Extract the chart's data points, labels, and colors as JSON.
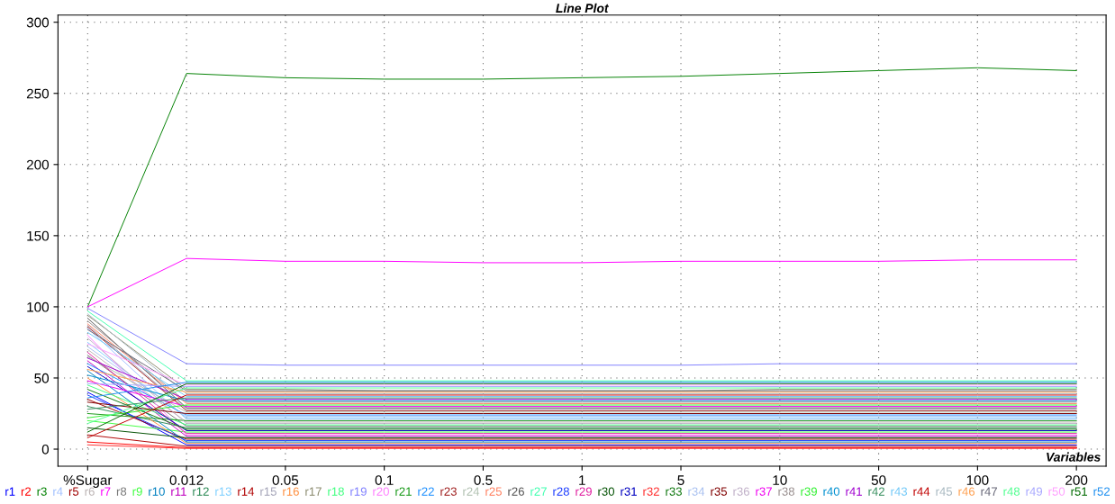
{
  "chart_data": {
    "type": "line",
    "title": "Line Plot",
    "xlabel": "Variables",
    "categories": [
      "%Sugar",
      "0.012",
      "0.05",
      "0.1",
      "0.5",
      "1",
      "5",
      "10",
      "50",
      "100",
      "200"
    ],
    "ylim": [
      -12,
      305
    ],
    "yticks": [
      0,
      50,
      100,
      150,
      200,
      250,
      300
    ],
    "grid": true,
    "legend": "bottom",
    "marker": "none",
    "line_style": "solid",
    "series": [
      {
        "name": "r1",
        "color": "#0000ff",
        "values": [
          40,
          3,
          3,
          3,
          3,
          3,
          3,
          3,
          3,
          3,
          3
        ]
      },
      {
        "name": "r2",
        "color": "#ff0000",
        "values": [
          5,
          1,
          1,
          1,
          1,
          1,
          1,
          1,
          1,
          1,
          1
        ]
      },
      {
        "name": "r3",
        "color": "#008000",
        "values": [
          100,
          264,
          261,
          260,
          260,
          261,
          262,
          264,
          266,
          268,
          266
        ]
      },
      {
        "name": "r4",
        "color": "#a0c0ff",
        "values": [
          85,
          21,
          21,
          21,
          21,
          21,
          21,
          21,
          21,
          21,
          21
        ]
      },
      {
        "name": "r5",
        "color": "#a00000",
        "values": [
          35,
          7,
          7,
          7,
          7,
          7,
          7,
          7,
          7,
          7,
          7
        ]
      },
      {
        "name": "r6",
        "color": "#bcb4b4",
        "values": [
          70,
          19,
          19,
          19,
          19,
          19,
          19,
          19,
          19,
          19,
          19
        ]
      },
      {
        "name": "r7",
        "color": "#ff00ff",
        "values": [
          100,
          134,
          132,
          132,
          131,
          131,
          132,
          132,
          132,
          133,
          133
        ]
      },
      {
        "name": "r8",
        "color": "#7a7a7a",
        "values": [
          66,
          16,
          16,
          16,
          16,
          16,
          16,
          16,
          16,
          16,
          16
        ]
      },
      {
        "name": "r9",
        "color": "#40ff40",
        "values": [
          20,
          12,
          12,
          12,
          12,
          12,
          12,
          12,
          12,
          12,
          12
        ]
      },
      {
        "name": "r10",
        "color": "#0080c0",
        "values": [
          55,
          5,
          5,
          5,
          5,
          5,
          5,
          5,
          5,
          5,
          5
        ]
      },
      {
        "name": "r11",
        "color": "#c000c0",
        "values": [
          62,
          9,
          9,
          9,
          9,
          9,
          9,
          9,
          9,
          9,
          9
        ]
      },
      {
        "name": "r12",
        "color": "#2e8b57",
        "values": [
          30,
          15,
          15,
          15,
          15,
          15,
          15,
          15,
          15,
          15,
          15
        ]
      },
      {
        "name": "r13",
        "color": "#80d0ff",
        "values": [
          75,
          22,
          22,
          22,
          22,
          22,
          22,
          22,
          22,
          22,
          22
        ]
      },
      {
        "name": "r14",
        "color": "#b00000",
        "values": [
          10,
          2,
          2,
          2,
          2,
          2,
          2,
          2,
          2,
          2,
          2
        ]
      },
      {
        "name": "r15",
        "color": "#a4a4b8",
        "values": [
          87,
          28,
          28,
          28,
          28,
          28,
          28,
          28,
          28,
          28,
          28
        ]
      },
      {
        "name": "r16",
        "color": "#ff9040",
        "values": [
          50,
          4,
          4,
          4,
          4,
          4,
          4,
          4,
          4,
          4,
          4
        ]
      },
      {
        "name": "r17",
        "color": "#8c8c70",
        "values": [
          94,
          42,
          42,
          41,
          41,
          41,
          41,
          42,
          42,
          42,
          42
        ]
      },
      {
        "name": "r18",
        "color": "#40ff80",
        "values": [
          45,
          17,
          17,
          17,
          17,
          17,
          17,
          17,
          17,
          17,
          17
        ]
      },
      {
        "name": "r19",
        "color": "#8080ff",
        "values": [
          99,
          60,
          59,
          59,
          59,
          59,
          59,
          60,
          60,
          60,
          60
        ]
      },
      {
        "name": "r20",
        "color": "#ff80ff",
        "values": [
          80,
          10,
          10,
          10,
          10,
          10,
          10,
          10,
          10,
          10,
          10
        ]
      },
      {
        "name": "r21",
        "color": "#1a9a1a",
        "values": [
          25,
          20,
          20,
          20,
          20,
          20,
          20,
          20,
          20,
          20,
          20
        ]
      },
      {
        "name": "r22",
        "color": "#1e90ff",
        "values": [
          60,
          24,
          24,
          24,
          24,
          24,
          24,
          24,
          24,
          24,
          24
        ]
      },
      {
        "name": "r23",
        "color": "#a02020",
        "values": [
          86,
          27,
          27,
          27,
          27,
          27,
          27,
          27,
          27,
          27,
          27
        ]
      },
      {
        "name": "r24",
        "color": "#b0c0b0",
        "values": [
          65,
          26,
          26,
          26,
          26,
          26,
          26,
          26,
          26,
          26,
          26
        ]
      },
      {
        "name": "r25",
        "color": "#ff8060",
        "values": [
          88,
          32,
          32,
          32,
          32,
          32,
          32,
          32,
          32,
          32,
          32
        ]
      },
      {
        "name": "r26",
        "color": "#555555",
        "values": [
          92,
          29,
          29,
          29,
          29,
          29,
          29,
          29,
          29,
          29,
          29
        ]
      },
      {
        "name": "r27",
        "color": "#40ffb0",
        "values": [
          97,
          48,
          48,
          48,
          48,
          48,
          48,
          48,
          48,
          48,
          48
        ]
      },
      {
        "name": "r28",
        "color": "#2040ff",
        "values": [
          38,
          6,
          6,
          6,
          6,
          6,
          6,
          6,
          6,
          6,
          6
        ]
      },
      {
        "name": "r29",
        "color": "#e020a0",
        "values": [
          68,
          11,
          11,
          11,
          11,
          11,
          11,
          11,
          11,
          11,
          11
        ]
      },
      {
        "name": "r30",
        "color": "#005000",
        "values": [
          15,
          8,
          8,
          8,
          8,
          8,
          8,
          8,
          8,
          8,
          8
        ]
      },
      {
        "name": "r31",
        "color": "#0000c0",
        "values": [
          58,
          13,
          13,
          13,
          13,
          13,
          13,
          13,
          13,
          13,
          13
        ]
      },
      {
        "name": "r32",
        "color": "#ff3030",
        "values": [
          3,
          0.5,
          0.5,
          0.5,
          0.5,
          0.5,
          0.5,
          0.5,
          0.5,
          0.5,
          0.5
        ]
      },
      {
        "name": "r33",
        "color": "#107810",
        "values": [
          42,
          14,
          14,
          14,
          14,
          14,
          14,
          14,
          14,
          14,
          14
        ]
      },
      {
        "name": "r34",
        "color": "#a8c0f0",
        "values": [
          72,
          23,
          23,
          23,
          23,
          23,
          23,
          23,
          23,
          23,
          23
        ]
      },
      {
        "name": "r35",
        "color": "#800000",
        "values": [
          33,
          25,
          25,
          25,
          25,
          25,
          25,
          25,
          25,
          25,
          25
        ]
      },
      {
        "name": "r36",
        "color": "#c0b0c8",
        "values": [
          78,
          18,
          18,
          18,
          18,
          18,
          18,
          18,
          18,
          18,
          18
        ]
      },
      {
        "name": "r37",
        "color": "#f000f0",
        "values": [
          48,
          30,
          30,
          30,
          30,
          30,
          30,
          30,
          30,
          30,
          30
        ]
      },
      {
        "name": "r38",
        "color": "#9a9090",
        "values": [
          90,
          33,
          33,
          33,
          33,
          33,
          33,
          33,
          33,
          33,
          33
        ]
      },
      {
        "name": "r39",
        "color": "#30f030",
        "values": [
          22,
          31,
          31,
          31,
          31,
          31,
          31,
          31,
          31,
          31,
          31
        ]
      },
      {
        "name": "r40",
        "color": "#0090d0",
        "values": [
          52,
          34,
          34,
          34,
          34,
          34,
          34,
          34,
          34,
          34,
          34
        ]
      },
      {
        "name": "r41",
        "color": "#a000d0",
        "values": [
          64,
          35,
          35,
          35,
          35,
          35,
          35,
          35,
          35,
          35,
          35
        ]
      },
      {
        "name": "r42",
        "color": "#3a9060",
        "values": [
          28,
          36,
          36,
          36,
          36,
          36,
          36,
          36,
          36,
          36,
          36
        ]
      },
      {
        "name": "r43",
        "color": "#70c8f8",
        "values": [
          82,
          37,
          37,
          37,
          37,
          37,
          37,
          37,
          37,
          37,
          37
        ]
      },
      {
        "name": "r44",
        "color": "#c00000",
        "values": [
          8,
          38,
          38,
          38,
          38,
          38,
          38,
          38,
          38,
          38,
          38
        ]
      },
      {
        "name": "r45",
        "color": "#a8b8c0",
        "values": [
          95,
          39,
          39,
          39,
          39,
          39,
          39,
          39,
          39,
          39,
          39
        ]
      },
      {
        "name": "r46",
        "color": "#ffa050",
        "values": [
          56,
          40,
          40,
          40,
          40,
          40,
          40,
          40,
          40,
          40,
          40
        ]
      },
      {
        "name": "r47",
        "color": "#686878",
        "values": [
          84,
          41,
          41,
          41,
          41,
          41,
          41,
          41,
          41,
          41,
          41
        ]
      },
      {
        "name": "r48",
        "color": "#50ff90",
        "values": [
          18,
          43,
          43,
          43,
          43,
          43,
          43,
          43,
          43,
          43,
          43
        ]
      },
      {
        "name": "r49",
        "color": "#a8a8ff",
        "values": [
          46,
          44,
          44,
          44,
          44,
          44,
          44,
          44,
          44,
          44,
          44
        ]
      },
      {
        "name": "r50",
        "color": "#ffa0ff",
        "values": [
          74,
          45,
          45,
          45,
          45,
          45,
          45,
          45,
          45,
          45,
          45
        ]
      },
      {
        "name": "r51",
        "color": "#006a00",
        "values": [
          12,
          46,
          46,
          46,
          46,
          46,
          46,
          46,
          46,
          46,
          46
        ]
      },
      {
        "name": "r52",
        "color": "#2090f0",
        "values": [
          36,
          47,
          47,
          47,
          47,
          47,
          47,
          47,
          47,
          47,
          47
        ]
      }
    ]
  }
}
